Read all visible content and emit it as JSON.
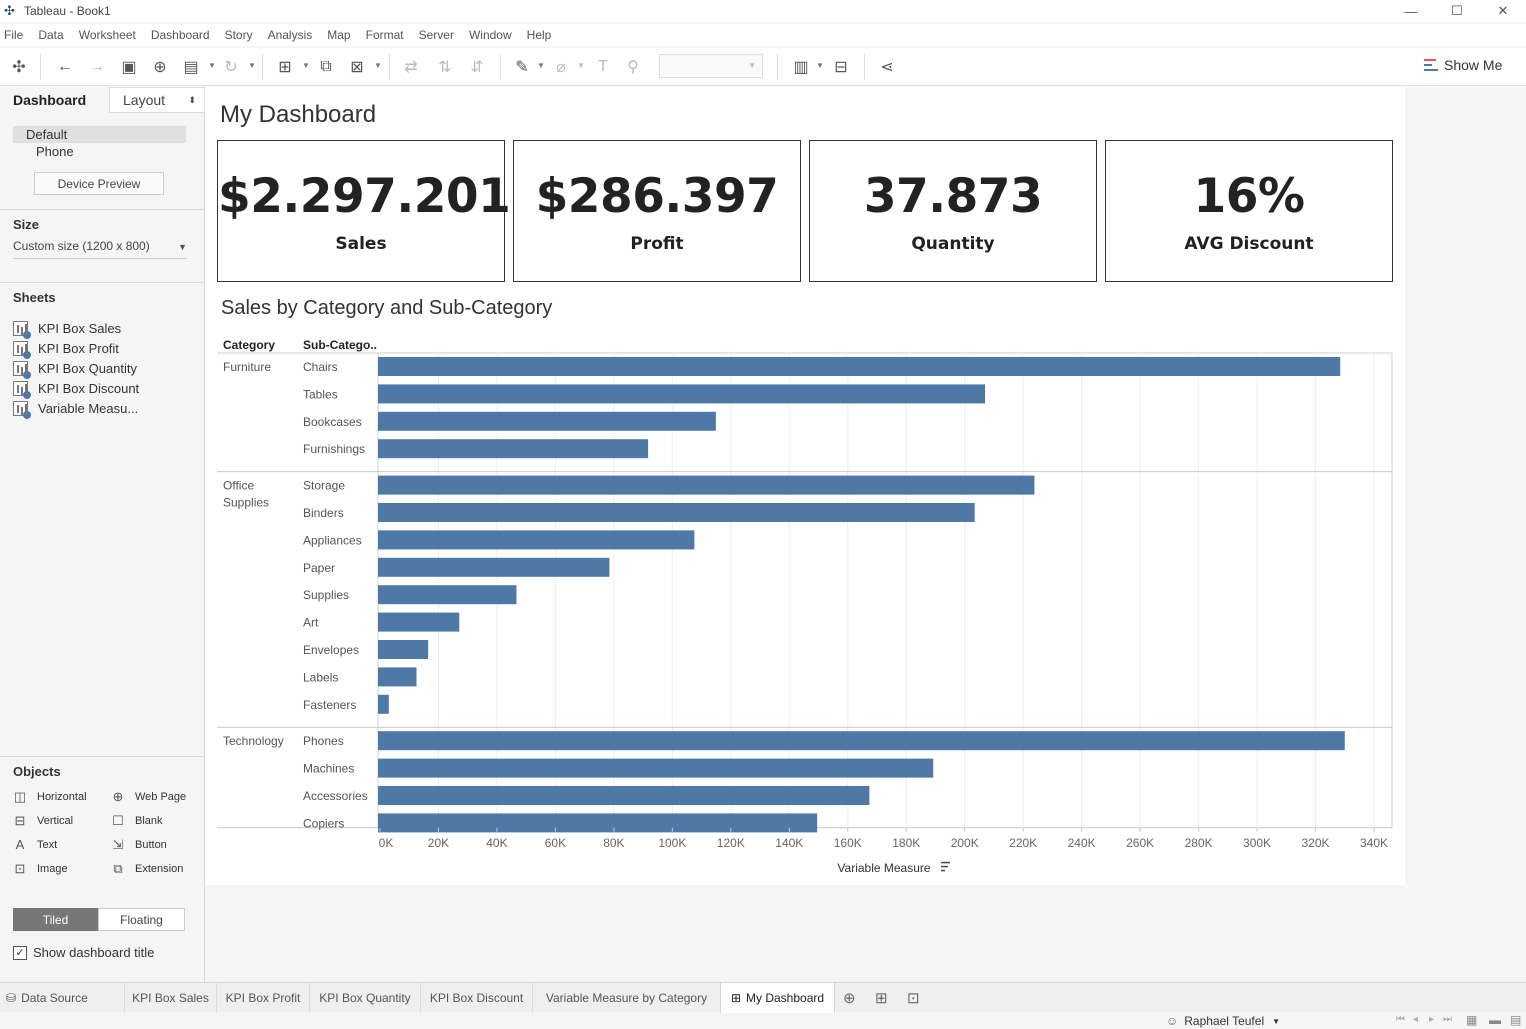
{
  "window": {
    "title": "Tableau - Book1"
  },
  "menu": [
    "File",
    "Data",
    "Worksheet",
    "Dashboard",
    "Story",
    "Analysis",
    "Map",
    "Format",
    "Server",
    "Window",
    "Help"
  ],
  "toolbar": {
    "show_me_label": "Show Me"
  },
  "left_panel": {
    "tabs": {
      "dashboard": "Dashboard",
      "layout": "Layout"
    },
    "devices": [
      "Default",
      "Phone"
    ],
    "device_preview_label": "Device Preview",
    "size_title": "Size",
    "size_value": "Custom size (1200 x 800)",
    "sheets_title": "Sheets",
    "sheets": [
      "KPI Box Sales",
      "KPI Box Profit",
      "KPI Box Quantity",
      "KPI Box Discount",
      "Variable Measu..."
    ],
    "objects_title": "Objects",
    "objects": {
      "horizontal": "Horizontal",
      "web_page": "Web Page",
      "vertical": "Vertical",
      "blank": "Blank",
      "text": "Text",
      "button": "Button",
      "image": "Image",
      "extension": "Extension"
    },
    "tiled_label": "Tiled",
    "floating_label": "Floating",
    "show_title_label": "Show dashboard title"
  },
  "dashboard": {
    "title": "My Dashboard",
    "kpis": [
      {
        "value": "$2.297.201",
        "label": "Sales"
      },
      {
        "value": "$286.397",
        "label": "Profit"
      },
      {
        "value": "37.873",
        "label": "Quantity"
      },
      {
        "value": "16%",
        "label": "AVG Discount"
      }
    ],
    "chart_title": "Sales by Category and Sub-Category"
  },
  "chart_data": {
    "type": "bar",
    "orientation": "horizontal",
    "column_headers": [
      "Category",
      "Sub-Catego.."
    ],
    "groups": [
      {
        "category": "Furniture",
        "items": [
          {
            "name": "Chairs",
            "value": 328449
          },
          {
            "name": "Tables",
            "value": 206966
          },
          {
            "name": "Bookcases",
            "value": 114880
          },
          {
            "name": "Furnishings",
            "value": 91705
          }
        ]
      },
      {
        "category": "Office Supplies",
        "items": [
          {
            "name": "Storage",
            "value": 223844
          },
          {
            "name": "Binders",
            "value": 203413
          },
          {
            "name": "Appliances",
            "value": 107532
          },
          {
            "name": "Paper",
            "value": 78479
          },
          {
            "name": "Supplies",
            "value": 46674
          },
          {
            "name": "Art",
            "value": 27119
          },
          {
            "name": "Envelopes",
            "value": 16476
          },
          {
            "name": "Labels",
            "value": 12486
          },
          {
            "name": "Fasteners",
            "value": 3024
          }
        ]
      },
      {
        "category": "Technology",
        "items": [
          {
            "name": "Phones",
            "value": 330007
          },
          {
            "name": "Machines",
            "value": 189239
          },
          {
            "name": "Accessories",
            "value": 167380
          },
          {
            "name": "Copiers",
            "value": 149528
          }
        ]
      }
    ],
    "x_ticks": [
      "0K",
      "20K",
      "40K",
      "60K",
      "80K",
      "100K",
      "120K",
      "140K",
      "160K",
      "180K",
      "200K",
      "220K",
      "240K",
      "260K",
      "280K",
      "300K",
      "320K",
      "340K"
    ],
    "xlim": [
      0,
      345000
    ],
    "xlabel": "Variable Measure",
    "bar_color": "#4e79a7",
    "grid": true
  },
  "bottom_tabs": {
    "data_source": "Data Source",
    "sheets": [
      "KPI Box Sales",
      "KPI Box Profit",
      "KPI Box Quantity",
      "KPI Box Discount",
      "Variable Measure by Category"
    ],
    "active": "My Dashboard"
  },
  "status": {
    "user": "Raphael Teufel"
  },
  "colors": {
    "accent": "#4e79a7",
    "kpi_text": "#222222"
  }
}
